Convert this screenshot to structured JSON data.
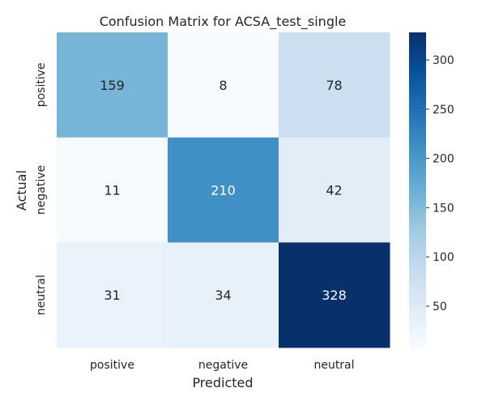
{
  "chart_data": {
    "type": "heatmap",
    "title": "Confusion Matrix for ACSA_test_single",
    "xlabel": "Predicted",
    "ylabel": "Actual",
    "x_categories": [
      "positive",
      "negative",
      "neutral"
    ],
    "y_categories": [
      "positive",
      "negative",
      "neutral"
    ],
    "values": [
      [
        159,
        8,
        78
      ],
      [
        11,
        210,
        42
      ],
      [
        31,
        34,
        328
      ]
    ],
    "colormap": "Blues",
    "vmin": 8,
    "vmax": 328,
    "colorbar_ticks": [
      50,
      100,
      150,
      200,
      250,
      300
    ],
    "grid": false
  },
  "colors": {
    "low": "#f7fbff",
    "high": "#08306b",
    "text_dark": "#262626",
    "text_light": "#ffffff"
  }
}
